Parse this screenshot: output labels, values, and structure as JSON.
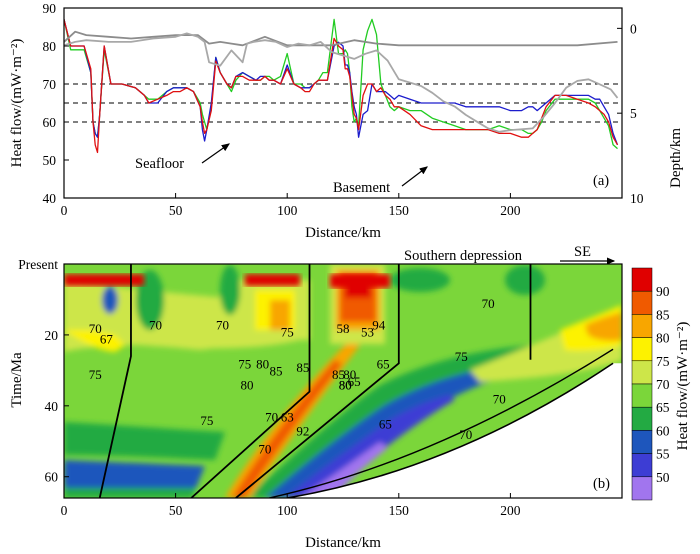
{
  "chart_data": [
    {
      "type": "line",
      "panel_label": "(a)",
      "xlabel": "Distance/km",
      "ylabel": "Heat flow/(mW·m⁻²)",
      "y2label": "Depth/km",
      "xlim": [
        0,
        250
      ],
      "ylim": [
        40,
        90
      ],
      "y2lim": [
        10,
        -1.2
      ],
      "xticks": [
        "0",
        "50",
        "100",
        "150",
        "200"
      ],
      "yticks": [
        "40",
        "50",
        "60",
        "70",
        "80",
        "90"
      ],
      "y2ticks": [
        "0",
        "5",
        "10"
      ],
      "reference_lines": [
        60,
        65,
        70
      ],
      "annotations": [
        "Seafloor",
        "Basement"
      ],
      "series": [
        {
          "name": "green",
          "color": "#22cc22",
          "x": [
            0,
            3,
            6,
            9,
            12,
            13,
            14,
            15,
            16,
            18,
            21,
            26,
            32,
            36,
            38,
            42,
            46,
            49,
            52,
            55,
            58,
            61,
            62,
            63,
            64,
            66,
            68,
            70,
            73,
            75,
            77,
            80,
            83,
            86,
            88,
            90,
            92,
            94,
            97,
            100,
            103,
            106,
            108,
            110,
            112,
            114,
            116,
            118,
            121,
            123,
            125,
            126,
            127,
            128,
            129,
            130,
            131,
            132,
            134,
            136,
            138,
            140,
            142,
            144,
            146,
            148,
            150,
            155,
            160,
            165,
            170,
            175,
            180,
            185,
            190,
            195,
            200,
            205,
            208,
            210,
            212,
            214,
            216,
            220,
            225,
            230,
            235,
            238,
            240,
            242,
            244,
            246,
            248
          ],
          "values": [
            87,
            79,
            79,
            79,
            73,
            60,
            57,
            56,
            62,
            79,
            70,
            70,
            69,
            67,
            66,
            66,
            68,
            69,
            69,
            69,
            68,
            65,
            62,
            60,
            58,
            64,
            77,
            73,
            70,
            68,
            71,
            73,
            72,
            71,
            71,
            72,
            72,
            71,
            72,
            78,
            70,
            70,
            69,
            69,
            70,
            71,
            73,
            73,
            87,
            78,
            78,
            79,
            78,
            73,
            64,
            60,
            61,
            59,
            79,
            84,
            87,
            83,
            70,
            67,
            64,
            63,
            64,
            63,
            63,
            61,
            60,
            59,
            58,
            58,
            58,
            59,
            58,
            58,
            57,
            57,
            58,
            60,
            63,
            66,
            66,
            66,
            66,
            65,
            63,
            61,
            59,
            54,
            53
          ]
        },
        {
          "name": "blue",
          "color": "#1c1ccc",
          "x": [
            0,
            3,
            6,
            9,
            12,
            13,
            14,
            15,
            16,
            18,
            21,
            26,
            32,
            36,
            38,
            42,
            46,
            49,
            52,
            55,
            58,
            61,
            62,
            63,
            64,
            66,
            68,
            70,
            73,
            75,
            77,
            80,
            83,
            86,
            88,
            90,
            92,
            94,
            97,
            100,
            103,
            106,
            108,
            110,
            112,
            114,
            116,
            118,
            121,
            123,
            125,
            126,
            127,
            128,
            129,
            130,
            131,
            132,
            134,
            136,
            138,
            140,
            142,
            144,
            146,
            148,
            150,
            155,
            160,
            165,
            170,
            175,
            180,
            185,
            190,
            195,
            200,
            205,
            208,
            210,
            212,
            214,
            216,
            220,
            225,
            230,
            235,
            238,
            240,
            242,
            244,
            246,
            248
          ],
          "values": [
            87,
            80,
            80,
            80,
            73,
            60,
            57,
            56,
            62,
            80,
            70,
            70,
            69,
            67,
            65,
            65,
            68,
            69,
            69,
            69,
            68,
            64,
            58,
            55,
            58,
            65,
            77,
            73,
            70,
            69,
            72,
            73,
            72,
            71,
            72,
            72,
            71,
            71,
            70,
            75,
            70,
            69,
            69,
            69,
            70,
            71,
            71,
            71,
            80,
            81,
            80,
            75,
            75,
            73,
            68,
            64,
            62,
            56,
            62,
            63,
            70,
            68,
            68,
            68,
            67,
            66,
            67,
            66,
            65,
            65,
            65,
            65,
            64,
            64,
            64,
            64,
            63,
            63,
            64,
            64,
            63,
            64,
            65,
            67,
            67,
            67,
            67,
            66,
            66,
            64,
            62,
            57,
            54
          ]
        },
        {
          "name": "red",
          "color": "#e01010",
          "x": [
            0,
            3,
            6,
            9,
            12,
            13,
            14,
            15,
            16,
            18,
            21,
            26,
            32,
            36,
            38,
            42,
            46,
            49,
            52,
            55,
            58,
            61,
            62,
            63,
            64,
            66,
            68,
            70,
            73,
            75,
            77,
            80,
            83,
            86,
            88,
            90,
            92,
            94,
            97,
            100,
            103,
            106,
            108,
            110,
            112,
            114,
            116,
            118,
            121,
            123,
            125,
            126,
            127,
            128,
            129,
            130,
            131,
            132,
            134,
            136,
            138,
            140,
            142,
            144,
            146,
            148,
            150,
            155,
            160,
            165,
            170,
            175,
            180,
            185,
            190,
            195,
            200,
            205,
            208,
            210,
            212,
            214,
            216,
            220,
            225,
            230,
            235,
            238,
            240,
            242,
            244,
            246,
            248
          ],
          "values": [
            87,
            80,
            80,
            80,
            74,
            60,
            54,
            52,
            62,
            80,
            70,
            70,
            69,
            67,
            65,
            66,
            67,
            68,
            68,
            69,
            68,
            64,
            60,
            57,
            58,
            63,
            76,
            73,
            70,
            69,
            72,
            72,
            71,
            71,
            71,
            72,
            71,
            71,
            70,
            74,
            70,
            69,
            68,
            68,
            70,
            71,
            71,
            71,
            82,
            80,
            79,
            74,
            74,
            72,
            67,
            62,
            61,
            58,
            67,
            70,
            70,
            68,
            69,
            67,
            66,
            64,
            64,
            62,
            59,
            58,
            58,
            58,
            58,
            58,
            58,
            57,
            57,
            56,
            56,
            57,
            58,
            61,
            64,
            67,
            67,
            66,
            65,
            64,
            63,
            62,
            60,
            56,
            54
          ]
        },
        {
          "name": "Seafloor",
          "unit": "km",
          "color": "#8c8c8c",
          "x": [
            0,
            5,
            10,
            20,
            30,
            40,
            50,
            60,
            65,
            70,
            75,
            80,
            90,
            100,
            110,
            120,
            130,
            140,
            150,
            170,
            200,
            230,
            248
          ],
          "values": [
            0.8,
            0.2,
            0.4,
            0.5,
            0.6,
            0.5,
            0.4,
            0.4,
            0.9,
            0.8,
            0.9,
            1.0,
            0.5,
            1.0,
            1.0,
            1.0,
            0.7,
            0.9,
            1.0,
            1.0,
            1.0,
            1.0,
            0.8
          ]
        },
        {
          "name": "Basement",
          "unit": "km",
          "color": "#a8a8a8",
          "x": [
            0,
            5,
            10,
            20,
            30,
            40,
            50,
            55,
            60,
            63,
            65,
            70,
            75,
            80,
            82,
            85,
            90,
            95,
            100,
            105,
            110,
            115,
            120,
            125,
            130,
            135,
            140,
            145,
            150,
            155,
            160,
            165,
            170,
            175,
            180,
            185,
            190,
            195,
            200,
            210,
            215,
            220,
            225,
            230,
            235,
            240,
            245,
            248
          ],
          "values": [
            1.0,
            0.8,
            0.7,
            0.8,
            0.8,
            0.6,
            0.5,
            0.3,
            0.5,
            0.8,
            2.0,
            2.2,
            1.3,
            2.0,
            0.9,
            0.8,
            0.7,
            0.8,
            1.1,
            0.9,
            1.0,
            0.8,
            1.4,
            1.6,
            1.8,
            1.5,
            1.3,
            1.9,
            3.0,
            3.2,
            3.4,
            3.8,
            4.3,
            4.6,
            5.1,
            5.5,
            5.9,
            6.1,
            6.0,
            5.9,
            5.2,
            4.4,
            3.5,
            3.1,
            3.0,
            3.3,
            3.6,
            4.1
          ]
        }
      ]
    },
    {
      "type": "heatmap",
      "panel_label": "(b)",
      "xlabel": "Distance/km",
      "ylabel": "Time/Ma",
      "colorbar_label": "Heat flow/(mW·m⁻²)",
      "xlim": [
        0,
        250
      ],
      "ylim": [
        66,
        0
      ],
      "xticks": [
        "0",
        "50",
        "100",
        "150",
        "200"
      ],
      "yticks": [
        "Present",
        "20",
        "40",
        "60"
      ],
      "color_levels": [
        50,
        55,
        60,
        65,
        70,
        75,
        80,
        85,
        90
      ],
      "colorbar_ticks": [
        "50",
        "55",
        "60",
        "65",
        "70",
        "75",
        "80",
        "85",
        "90"
      ],
      "colors": [
        "#a175ee",
        "#3d3dd4",
        "#1e56bc",
        "#23aa43",
        "#7bd63a",
        "#cde649",
        "#fdf200",
        "#f8a600",
        "#f05a00",
        "#e00000"
      ],
      "contour_labels": [
        "70",
        "67",
        "70",
        "75",
        "70",
        "75",
        "85",
        "80",
        "75",
        "80",
        "85",
        "63",
        "75",
        "70",
        "65",
        "65",
        "70",
        "75",
        "70",
        "70",
        "92",
        "58",
        "70",
        "85",
        "80",
        "80",
        "80",
        "94",
        "53",
        "65"
      ],
      "direction_label": "SE",
      "region_label": "Southern depression",
      "fault_lines_km": [
        [
          30,
          16
        ],
        [
          110,
          57
        ],
        [
          150,
          77
        ],
        [
          209,
          0
        ]
      ],
      "unconformity_km": [
        [
          246,
          28
        ],
        [
          100,
          66
        ]
      ]
    }
  ]
}
